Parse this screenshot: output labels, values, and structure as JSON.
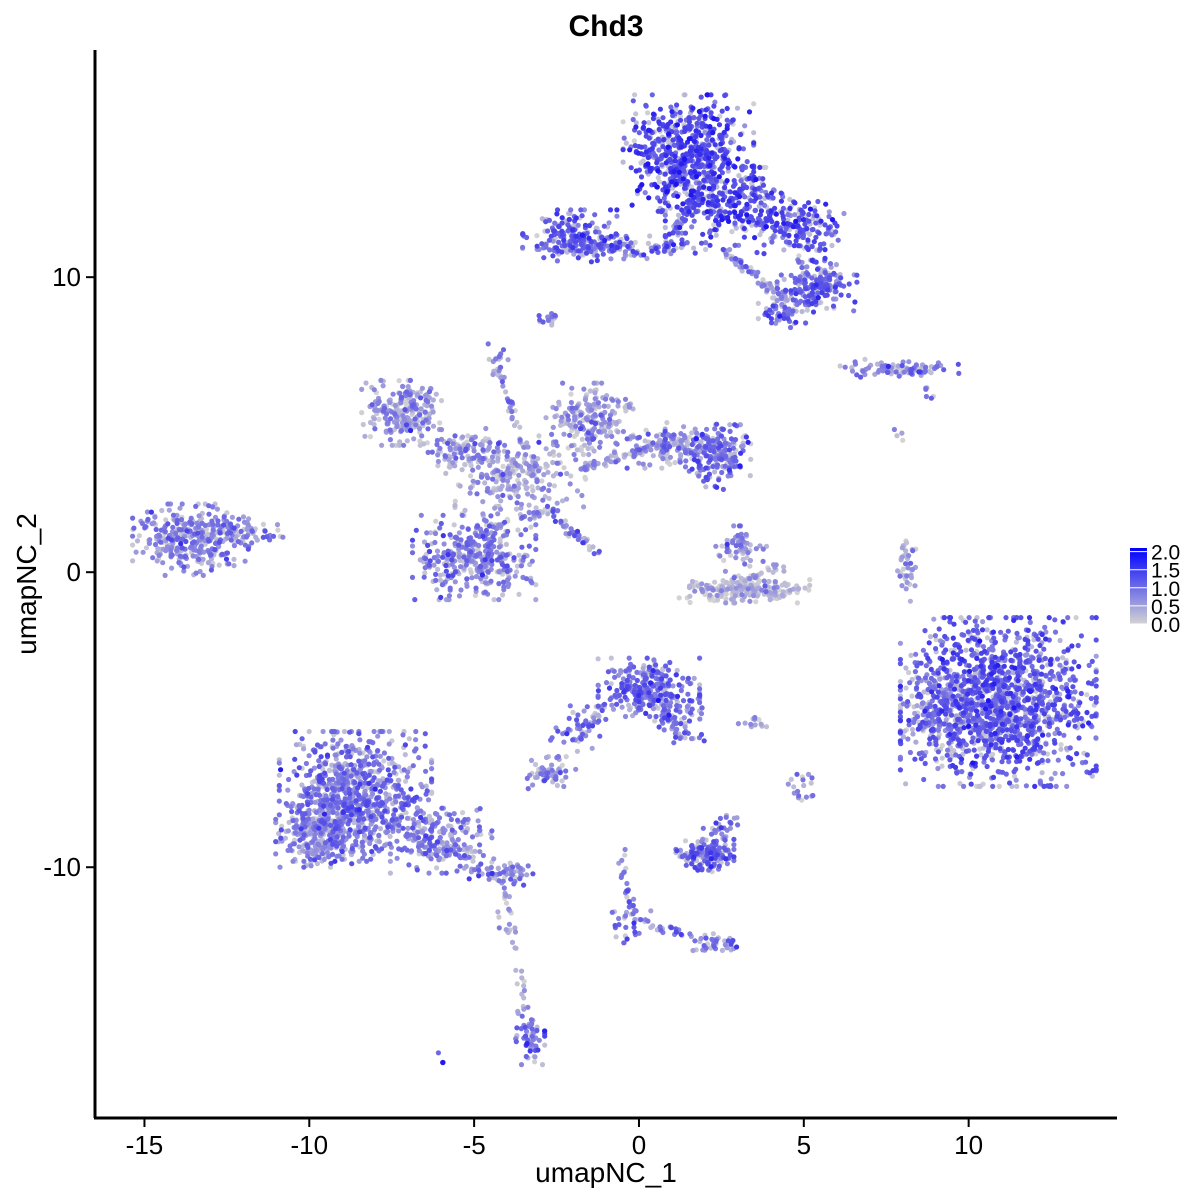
{
  "chart_data": {
    "type": "scatter",
    "title": "Chd3",
    "xlabel": "umapNC_1",
    "ylabel": "umapNC_2",
    "xlim": [
      -16.5,
      14.5
    ],
    "ylim": [
      -18.5,
      17.7
    ],
    "x_ticks": [
      {
        "value": -15,
        "label": "-15"
      },
      {
        "value": -10,
        "label": "-10"
      },
      {
        "value": -5,
        "label": "-5"
      },
      {
        "value": 0,
        "label": "0"
      },
      {
        "value": 5,
        "label": "5"
      },
      {
        "value": 10,
        "label": "10"
      }
    ],
    "y_ticks": [
      {
        "value": 10,
        "label": "10"
      },
      {
        "value": 0,
        "label": "0"
      },
      {
        "value": -10,
        "label": "-10"
      }
    ],
    "grid": false,
    "legend": {
      "placement": "right",
      "type": "colorbar",
      "min": 0.0,
      "max": 2.1,
      "ticks": [
        {
          "value": 0.0,
          "label": "0.0"
        },
        {
          "value": 0.5,
          "label": "0.5"
        },
        {
          "value": 1.0,
          "label": "1.0"
        },
        {
          "value": 1.5,
          "label": "1.5"
        },
        {
          "value": 2.0,
          "label": "2.0"
        }
      ]
    },
    "colors": {
      "low": "#d3d3d3",
      "high": "#0000ff"
    },
    "clusters": [
      {
        "cx": 1.5,
        "cy": 14.2,
        "sx": 0.9,
        "sy": 0.9,
        "n": 620,
        "expr": 1.4
      },
      {
        "cx": 3.0,
        "cy": 12.4,
        "sx": 1.0,
        "sy": 0.6,
        "n": 280,
        "expr": 1.3
      },
      {
        "cx": 4.9,
        "cy": 11.6,
        "sx": 0.6,
        "sy": 0.5,
        "n": 150,
        "expr": 1.25
      },
      {
        "cx": 5.4,
        "cy": 9.7,
        "sx": 0.55,
        "sy": 0.4,
        "n": 170,
        "expr": 1.0
      },
      {
        "cx": 4.5,
        "cy": 8.9,
        "sx": 0.4,
        "sy": 0.3,
        "n": 60,
        "expr": 1.1
      },
      {
        "cx": -2.1,
        "cy": 11.4,
        "sx": 0.65,
        "sy": 0.4,
        "n": 180,
        "expr": 1.2
      },
      {
        "cx": -0.4,
        "cy": 11.0,
        "sx": 1.1,
        "sy": 0.18,
        "n": 110,
        "expr": 1.05
      },
      {
        "cx": -2.7,
        "cy": 8.6,
        "sx": 0.15,
        "sy": 0.18,
        "n": 14,
        "expr": 1.0
      },
      {
        "cx": -4.3,
        "cy": 7.3,
        "sx": 0.15,
        "sy": 0.2,
        "n": 14,
        "expr": 0.9
      },
      {
        "cx": 8.0,
        "cy": 6.9,
        "sx": 0.9,
        "sy": 0.15,
        "n": 60,
        "expr": 0.85
      },
      {
        "cx": 7.9,
        "cy": 4.8,
        "sx": 0.1,
        "sy": 0.15,
        "n": 4,
        "expr": 0.5
      },
      {
        "cx": -7.2,
        "cy": 5.4,
        "sx": 0.55,
        "sy": 0.5,
        "n": 230,
        "expr": 0.55
      },
      {
        "cx": -5.3,
        "cy": 4.1,
        "sx": 0.6,
        "sy": 0.35,
        "n": 110,
        "expr": 0.65
      },
      {
        "cx": -1.5,
        "cy": 5.2,
        "sx": 0.6,
        "sy": 0.55,
        "n": 190,
        "expr": 0.55
      },
      {
        "cx": 1.4,
        "cy": 4.3,
        "sx": 0.8,
        "sy": 0.35,
        "n": 160,
        "expr": 0.75
      },
      {
        "cx": 2.4,
        "cy": 3.9,
        "sx": 0.45,
        "sy": 0.5,
        "n": 140,
        "expr": 1.05
      },
      {
        "cx": -3.6,
        "cy": 3.3,
        "sx": 0.9,
        "sy": 0.6,
        "n": 210,
        "expr": 0.45
      },
      {
        "cx": -5.0,
        "cy": 0.5,
        "sx": 0.85,
        "sy": 0.65,
        "n": 360,
        "expr": 0.8
      },
      {
        "cx": -13.6,
        "cy": 1.1,
        "sx": 0.8,
        "sy": 0.55,
        "n": 320,
        "expr": 0.75
      },
      {
        "cx": -11.9,
        "cy": 1.4,
        "sx": 0.5,
        "sy": 0.28,
        "n": 60,
        "expr": 0.7
      },
      {
        "cx": 3.1,
        "cy": 0.8,
        "sx": 0.35,
        "sy": 0.35,
        "n": 60,
        "expr": 0.55
      },
      {
        "cx": 3.2,
        "cy": -0.6,
        "sx": 0.9,
        "sy": 0.2,
        "n": 180,
        "expr": 0.2
      },
      {
        "cx": 8.1,
        "cy": 0.3,
        "sx": 0.14,
        "sy": 0.6,
        "n": 40,
        "expr": 0.45
      },
      {
        "cx": 10.9,
        "cy": -4.4,
        "sx": 1.35,
        "sy": 1.3,
        "n": 1400,
        "expr": 1.15
      },
      {
        "cx": 8.9,
        "cy": -4.9,
        "sx": 0.4,
        "sy": 0.6,
        "n": 120,
        "expr": 0.65
      },
      {
        "cx": 0.3,
        "cy": -3.9,
        "sx": 0.7,
        "sy": 0.45,
        "n": 280,
        "expr": 1.0
      },
      {
        "cx": 1.1,
        "cy": -4.9,
        "sx": 0.4,
        "sy": 0.4,
        "n": 60,
        "expr": 0.9
      },
      {
        "cx": -1.8,
        "cy": -5.3,
        "sx": 0.4,
        "sy": 0.35,
        "n": 40,
        "expr": 0.85
      },
      {
        "cx": -2.8,
        "cy": -6.8,
        "sx": 0.4,
        "sy": 0.25,
        "n": 60,
        "expr": 0.75
      },
      {
        "cx": 2.0,
        "cy": -9.6,
        "sx": 0.4,
        "sy": 0.25,
        "n": 140,
        "expr": 1.1
      },
      {
        "cx": 2.5,
        "cy": -8.7,
        "sx": 0.25,
        "sy": 0.25,
        "n": 30,
        "expr": 0.9
      },
      {
        "cx": 3.5,
        "cy": -5.1,
        "sx": 0.22,
        "sy": 0.08,
        "n": 12,
        "expr": 0.6
      },
      {
        "cx": 5.0,
        "cy": -7.4,
        "sx": 0.25,
        "sy": 0.3,
        "n": 18,
        "expr": 0.5
      },
      {
        "cx": -8.6,
        "cy": -7.6,
        "sx": 1.05,
        "sy": 1.0,
        "n": 820,
        "expr": 0.85
      },
      {
        "cx": -9.7,
        "cy": -8.9,
        "sx": 0.6,
        "sy": 0.5,
        "n": 240,
        "expr": 0.75
      },
      {
        "cx": -6.0,
        "cy": -9.1,
        "sx": 0.7,
        "sy": 0.5,
        "n": 200,
        "expr": 0.75
      },
      {
        "cx": -4.2,
        "cy": -10.2,
        "sx": 0.45,
        "sy": 0.22,
        "n": 60,
        "expr": 0.9
      },
      {
        "cx": -3.3,
        "cy": -15.7,
        "sx": 0.2,
        "sy": 0.45,
        "n": 60,
        "expr": 1.05
      },
      {
        "cx": -0.3,
        "cy": -11.9,
        "sx": 0.3,
        "sy": 0.3,
        "n": 30,
        "expr": 0.9
      },
      {
        "cx": 2.3,
        "cy": -12.6,
        "sx": 0.3,
        "sy": 0.2,
        "n": 30,
        "expr": 0.8
      },
      {
        "cx": -5.9,
        "cy": -16.4,
        "sx": 0.1,
        "sy": 0.1,
        "n": 3,
        "expr": 0.8
      }
    ],
    "streaks": [
      {
        "x1": -4.3,
        "y1": 6.9,
        "x2": -3.3,
        "y2": 3.5,
        "n": 40,
        "expr": 0.7
      },
      {
        "x1": -2.7,
        "y1": 2.0,
        "x2": -1.2,
        "y2": 0.6,
        "n": 40,
        "expr": 0.9
      },
      {
        "x1": -2.6,
        "y1": 2.2,
        "x2": -5.0,
        "y2": 1.3,
        "n": 40,
        "expr": 0.6
      },
      {
        "x1": -1.8,
        "y1": 3.5,
        "x2": 1.2,
        "y2": 4.5,
        "n": 80,
        "expr": 0.55
      },
      {
        "x1": 0.8,
        "y1": 11.0,
        "x2": 1.8,
        "y2": 12.9,
        "n": 60,
        "expr": 1.0
      },
      {
        "x1": 2.5,
        "y1": 10.9,
        "x2": 4.5,
        "y2": 9.2,
        "n": 60,
        "expr": 0.6
      },
      {
        "x1": 7.3,
        "y1": 6.9,
        "x2": 9.0,
        "y2": 6.9,
        "n": 30,
        "expr": 0.8
      },
      {
        "x1": 8.6,
        "y1": 6.4,
        "x2": 8.9,
        "y2": 5.8,
        "n": 6,
        "expr": 0.7
      },
      {
        "x1": -1.1,
        "y1": -4.4,
        "x2": -1.9,
        "y2": -5.8,
        "n": 25,
        "expr": 0.8
      },
      {
        "x1": 0.8,
        "y1": -4.6,
        "x2": 1.2,
        "y2": -5.6,
        "n": 20,
        "expr": 0.9
      },
      {
        "x1": -0.6,
        "y1": -9.3,
        "x2": -0.2,
        "y2": -11.8,
        "n": 25,
        "expr": 0.9
      },
      {
        "x1": 0.0,
        "y1": -11.8,
        "x2": 2.4,
        "y2": -12.6,
        "n": 30,
        "expr": 0.85
      },
      {
        "x1": -4.1,
        "y1": -10.6,
        "x2": -3.4,
        "y2": -15.2,
        "n": 30,
        "expr": 0.4
      },
      {
        "x1": -4.3,
        "y1": -11.6,
        "x2": -4.0,
        "y2": -12.3,
        "n": 6,
        "expr": 0.3
      },
      {
        "x1": 2.1,
        "y1": -0.6,
        "x2": 4.4,
        "y2": 0.2,
        "n": 40,
        "expr": 0.35
      }
    ]
  }
}
